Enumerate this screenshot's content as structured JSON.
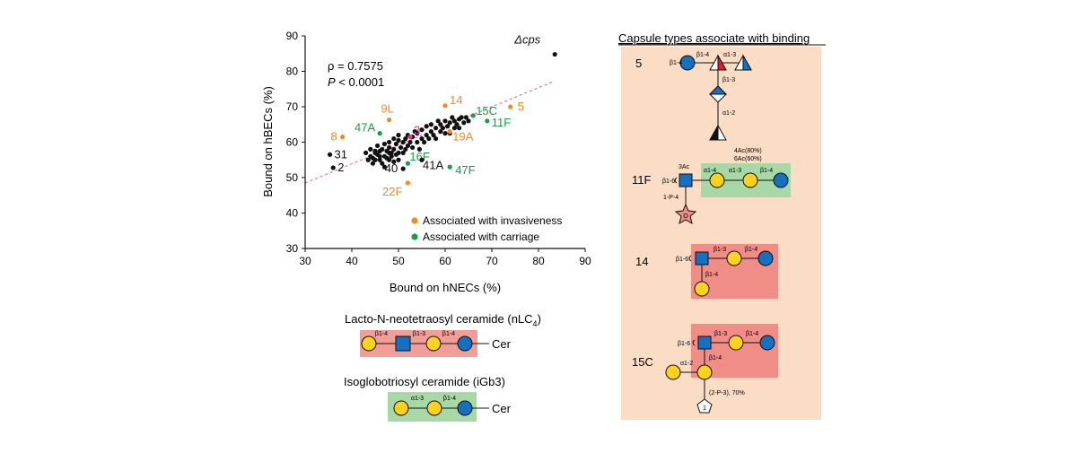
{
  "chart_data": {
    "type": "scatter",
    "xlabel": "Bound on hNECs (%)",
    "ylabel": "Bound on hBECs (%)",
    "xlim": [
      30,
      90
    ],
    "ylim": [
      30,
      90
    ],
    "xticks": [
      30,
      40,
      50,
      60,
      70,
      80,
      90
    ],
    "yticks": [
      30,
      40,
      50,
      60,
      70,
      80,
      90
    ],
    "grid": false,
    "stats": {
      "rho": "ρ = 0.7575",
      "p_symbol": "P",
      "p_value": " < 0.0001"
    },
    "trendline": {
      "x": [
        30,
        83
      ],
      "y": [
        48.5,
        77
      ]
    },
    "legend": {
      "placement": "bottom-right",
      "items": [
        {
          "label": "Associated with invasiveness",
          "color": "#f08a24"
        },
        {
          "label": "Associated with carriage",
          "color": "#1e9a4a"
        }
      ]
    },
    "colors": {
      "default": "#111111",
      "invasive": "#f08a24",
      "carriage": "#1e9a4a",
      "pink": "#e0338a"
    },
    "labeled_points": [
      {
        "label": "Δcps",
        "x": 83.5,
        "y": 84.8,
        "group": "default"
      },
      {
        "label": "5",
        "x": 74,
        "y": 70,
        "group": "invasive"
      },
      {
        "label": "14",
        "x": 60,
        "y": 70.3,
        "group": "invasive"
      },
      {
        "label": "15C",
        "x": 66,
        "y": 67.5,
        "group": "carriage"
      },
      {
        "label": "11F",
        "x": 69,
        "y": 66,
        "group": "carriage"
      },
      {
        "label": "9L",
        "x": 48,
        "y": 66.3,
        "group": "invasive"
      },
      {
        "label": "3",
        "x": 52.5,
        "y": 61.5,
        "group": "pink"
      },
      {
        "label": "19A",
        "x": 61,
        "y": 63,
        "group": "invasive"
      },
      {
        "label": "47A",
        "x": 46,
        "y": 62.5,
        "group": "carriage"
      },
      {
        "label": "8",
        "x": 38,
        "y": 61.5,
        "group": "invasive"
      },
      {
        "label": "16F",
        "x": 52,
        "y": 54,
        "group": "carriage"
      },
      {
        "label": "41A",
        "x": 55,
        "y": 55,
        "group": "default"
      },
      {
        "label": "47F",
        "x": 61,
        "y": 53,
        "group": "carriage"
      },
      {
        "label": "40",
        "x": 51,
        "y": 52.5,
        "group": "default"
      },
      {
        "label": "22F",
        "x": 52,
        "y": 48.5,
        "group": "invasive"
      },
      {
        "label": "31",
        "x": 35.3,
        "y": 56.5,
        "group": "default"
      },
      {
        "label": "2",
        "x": 36,
        "y": 52.8,
        "group": "default"
      }
    ],
    "points": [
      [
        43,
        57
      ],
      [
        43.5,
        55
      ],
      [
        44,
        58
      ],
      [
        44,
        56
      ],
      [
        44.5,
        54
      ],
      [
        45,
        57.5
      ],
      [
        45,
        55
      ],
      [
        45.5,
        56.5
      ],
      [
        45.5,
        59
      ],
      [
        46,
        55
      ],
      [
        46,
        57.5
      ],
      [
        46.5,
        54
      ],
      [
        46.5,
        58
      ],
      [
        47,
        56
      ],
      [
        47,
        59.5
      ],
      [
        47.5,
        55.5
      ],
      [
        47.5,
        57.5
      ],
      [
        48,
        55
      ],
      [
        48,
        58.5
      ],
      [
        48,
        60
      ],
      [
        48.5,
        56
      ],
      [
        48.5,
        57
      ],
      [
        49,
        54.5
      ],
      [
        49,
        58
      ],
      [
        49.5,
        56.5
      ],
      [
        49.5,
        59.5
      ],
      [
        50,
        57
      ],
      [
        50,
        60.5
      ],
      [
        50,
        55
      ],
      [
        50.5,
        58.5
      ],
      [
        51,
        60
      ],
      [
        51,
        57
      ],
      [
        51.5,
        61
      ],
      [
        51.5,
        58
      ],
      [
        52,
        62
      ],
      [
        52,
        59
      ],
      [
        52.5,
        60
      ],
      [
        53,
        61.5
      ],
      [
        53,
        58.5
      ],
      [
        53.5,
        63
      ],
      [
        54,
        60
      ],
      [
        54,
        62.5
      ],
      [
        54.5,
        58
      ],
      [
        55,
        61
      ],
      [
        55,
        63.5
      ],
      [
        55.5,
        60
      ],
      [
        56,
        62
      ],
      [
        56,
        64.5
      ],
      [
        56.5,
        61
      ],
      [
        57,
        63
      ],
      [
        57,
        65
      ],
      [
        57.5,
        62
      ],
      [
        58,
        64
      ],
      [
        58,
        61
      ],
      [
        58.5,
        66
      ],
      [
        59,
        63
      ],
      [
        59,
        65
      ],
      [
        59.5,
        64
      ],
      [
        60,
        62.5
      ],
      [
        60,
        66
      ],
      [
        60.5,
        64.5
      ],
      [
        61,
        65.5
      ],
      [
        61,
        62.5
      ],
      [
        61.5,
        67
      ],
      [
        62,
        64
      ],
      [
        62,
        66
      ],
      [
        62.5,
        65
      ],
      [
        63,
        66.5
      ],
      [
        63,
        64
      ],
      [
        63.5,
        67
      ],
      [
        64,
        65.5
      ],
      [
        64.5,
        67
      ],
      [
        65,
        66
      ],
      [
        47,
        53
      ],
      [
        48,
        57
      ],
      [
        50,
        62
      ],
      [
        49,
        61
      ],
      [
        45,
        57
      ],
      [
        44.5,
        55.5
      ],
      [
        46,
        56
      ]
    ]
  },
  "captions": {
    "nlc4_title": "Lacto-N-neotetraosyl ceramide (nLC",
    "nlc4_sub": "4",
    "nlc4_close": ")",
    "igb3_title": "Isoglobotriosyl  ceramide (iGb3)",
    "cer": "Cer",
    "nlc4_links": [
      "β1-4",
      "β1-3",
      "β1-4"
    ],
    "igb3_links": [
      "α1-3",
      "β1-4"
    ]
  },
  "panel": {
    "title": "Capsule types associate with binding",
    "bg_color": "#fbdcc4",
    "green_box": "#a7d8a5",
    "red_box": "#f08d86",
    "structures": {
      "s5": {
        "label": "5",
        "links": [
          "β1-4",
          "β1-4",
          "α1-3",
          "β1-3",
          "α1-2"
        ]
      },
      "s11f": {
        "label": "11F",
        "links": [
          "3Ac",
          "β1-6",
          "α1-4",
          "α1-3",
          "β1-4",
          "1-P-4"
        ],
        "notes": [
          "4Ac(80%)",
          "6Ac(60%)"
        ],
        "star_letter": "O"
      },
      "s14": {
        "label": "14",
        "links": [
          "β1-6",
          "β1-3",
          "β1-4",
          "β1-4"
        ]
      },
      "s15c": {
        "label": "15C",
        "links": [
          "β1-6",
          "β1-3",
          "β1-4",
          "α1-2",
          "β1-4"
        ],
        "note": "(2-P-3), 70%",
        "pentagon_letter": "1"
      }
    }
  }
}
